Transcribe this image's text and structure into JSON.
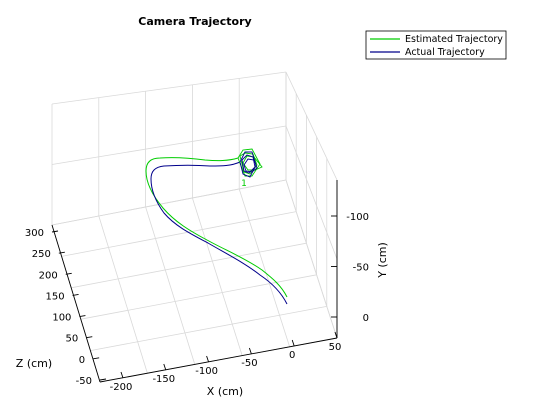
{
  "chart_data": {
    "type": "line",
    "title": "Camera Trajectory",
    "x_axis": {
      "label": "X (cm)",
      "ticks": [
        "-200",
        "-150",
        "-100",
        "-50",
        "0",
        "50"
      ]
    },
    "y_axis": {
      "label": "Y (cm)",
      "ticks": [
        "-100",
        "-50",
        "0"
      ]
    },
    "z_axis": {
      "label": "Z (cm)",
      "ticks": [
        "300",
        "250",
        "200",
        "150",
        "100",
        "50",
        "0",
        "-50"
      ]
    },
    "annotation": "1",
    "legend": {
      "placement": "top-right"
    },
    "grid": true,
    "series": [
      {
        "name": "Estimated Trajectory",
        "color": "#00cc00"
      },
      {
        "name": "Actual Trajectory",
        "color": "#00008b"
      }
    ]
  }
}
